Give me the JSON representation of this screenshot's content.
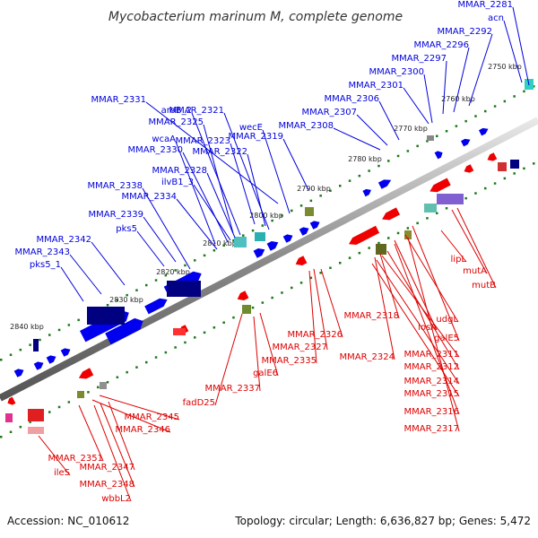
{
  "title": "Mycobacterium marinum M, complete genome",
  "footer": {
    "accession": "Accession: NC_010612",
    "topology": "Topology: circular; Length: 6,636,827 bp; Genes: 5,472"
  },
  "colors": {
    "backbone": "#7f7f7f",
    "forward_label": "#0000dd",
    "reverse_label": "#dd0000",
    "forward_feature": "#0000ee",
    "reverse_feature": "#ee0000",
    "dark_feature": "#000080",
    "gc_dot": "#1c7a1c"
  },
  "ticks": [
    "2750 kbp",
    "2760 kbp",
    "2770 kbp",
    "2780 kbp",
    "2790 kbp",
    "2800 kbp",
    "2810 kbp",
    "2820 kbp",
    "2830 kbp",
    "2840 kbp"
  ],
  "forward_genes": [
    "MMAR_2281",
    "acn",
    "MMAR_2292",
    "MMAR_2296",
    "MMAR_2297",
    "MMAR_2300",
    "MMAR_2301",
    "MMAR_2306",
    "MMAR_2307",
    "MMAR_2308",
    "MMAR_2331",
    "aroB_2",
    "MMAR_2321",
    "MMAR_2325",
    "wecE",
    "MMAR_2319",
    "wcaA",
    "MMAR_2323",
    "MMAR_2330",
    "MMAR_2322",
    "MMAR_2328",
    "ilvB1_3",
    "MMAR_2338",
    "MMAR_2334",
    "MMAR_2339",
    "pks5",
    "MMAR_2342",
    "MMAR_2343",
    "pks5_1"
  ],
  "reverse_genes": [
    "lipL",
    "mutA",
    "mutB",
    "MMAR_2318",
    "udgL",
    "losA",
    "MMAR_2326",
    "galE5",
    "MMAR_2327",
    "MMAR_2311",
    "MMAR_2335",
    "MMAR_2324",
    "MMAR_2312",
    "galE6",
    "MMAR_2314",
    "MMAR_2337",
    "MMAR_2315",
    "fadD25",
    "MMAR_2316",
    "MMAR_2345",
    "MMAR_2317",
    "MMAR_2346",
    "MMAR_2351",
    "ileS",
    "MMAR_2347",
    "MMAR_2348",
    "wbbL2"
  ]
}
